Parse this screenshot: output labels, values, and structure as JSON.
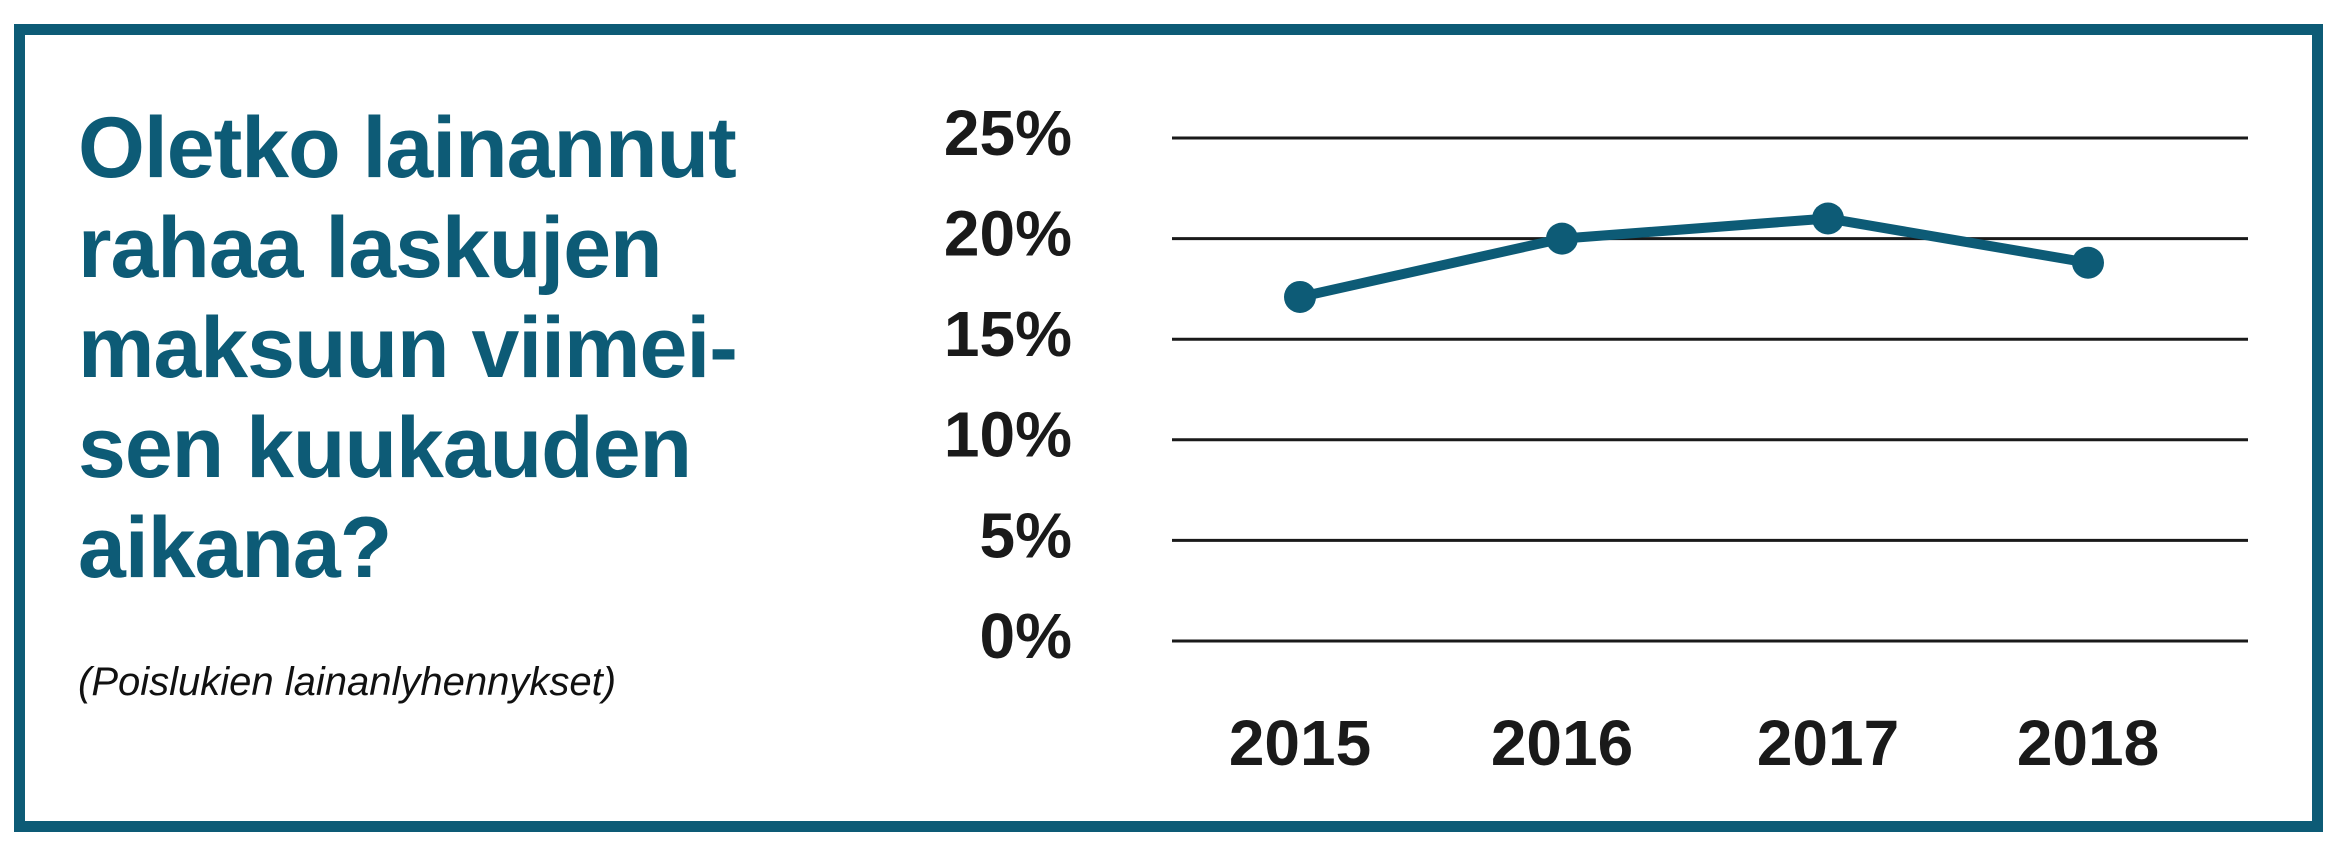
{
  "title": "Oletko lainannut\nrahaa laskujen\nmaksuun viimei-\nsen kuukauden\naikana?",
  "subtitle": "(Poislukien lainanlyhennykset)",
  "colors": {
    "accent": "#0d5b76",
    "grid": "#1a1a1a",
    "text": "#1a1a1a",
    "background": "#ffffff"
  },
  "chart_data": {
    "type": "line",
    "categories": [
      "2015",
      "2016",
      "2017",
      "2018"
    ],
    "series": [
      {
        "values": [
          17.1,
          20.0,
          21.0,
          18.8
        ]
      }
    ],
    "ylim": [
      0,
      25
    ],
    "yticks": [
      0,
      5,
      10,
      15,
      20,
      25
    ],
    "ytick_labels": [
      "0%",
      "5%",
      "10%",
      "15%",
      "20%",
      "25%"
    ],
    "grid": true,
    "legend": "none"
  }
}
